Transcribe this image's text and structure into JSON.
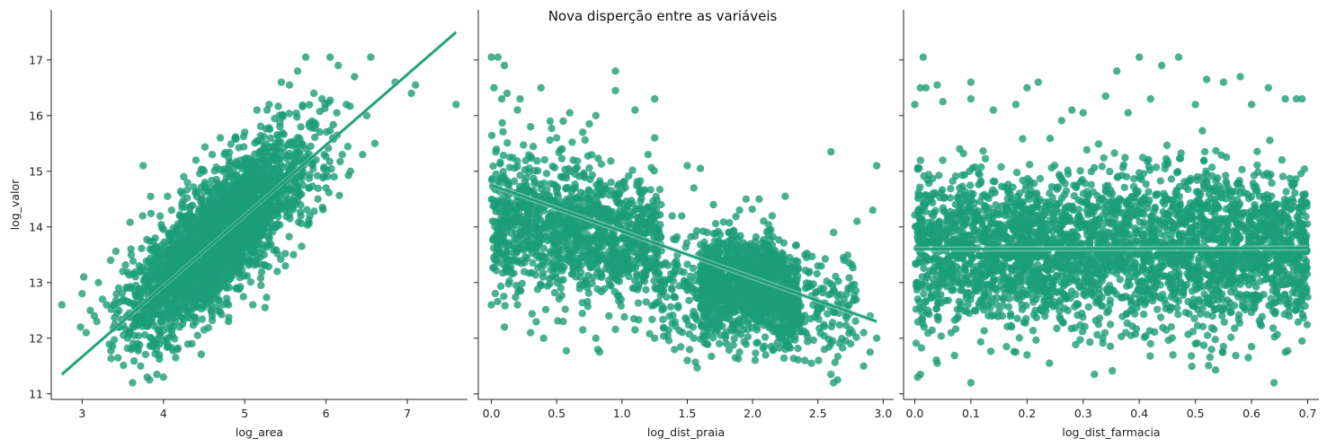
{
  "figure": {
    "suptitle": "Nova disperção entre as variáveis"
  },
  "colors": {
    "points": "#1b9e77",
    "line": "#1b9e77",
    "band": "#a8d8c8"
  },
  "chart_data": [
    {
      "type": "scatter",
      "xlabel": "log_area",
      "ylabel": "log_valor",
      "xlim": [
        2.62,
        7.74
      ],
      "ylim": [
        10.9,
        17.9
      ],
      "xticks": [
        3,
        4,
        5,
        6,
        7
      ],
      "yticks": [
        11,
        12,
        13,
        14,
        15,
        16,
        17
      ],
      "regression_line": {
        "x": [
          2.75,
          7.6
        ],
        "y": [
          11.35,
          17.5
        ]
      },
      "series": [
        {
          "points": [
            [
              2.75,
              12.6
            ],
            [
              2.98,
              12.2
            ],
            [
              3.0,
              12.8
            ],
            [
              3.02,
              13.1
            ],
            [
              3.05,
              12.1
            ],
            [
              3.1,
              12.5
            ],
            [
              3.15,
              12.4
            ],
            [
              3.18,
              12.3
            ],
            [
              3.2,
              13.0
            ],
            [
              3.25,
              12.7
            ],
            [
              3.3,
              12.6
            ],
            [
              3.35,
              13.4
            ],
            [
              3.4,
              12.6
            ],
            [
              3.45,
              12.9
            ],
            [
              3.45,
              12.2
            ],
            [
              3.5,
              13.2
            ],
            [
              3.55,
              12.9
            ],
            [
              3.55,
              12.4
            ],
            [
              3.6,
              12.9
            ],
            [
              3.6,
              13.6
            ],
            [
              3.62,
              11.2
            ],
            [
              3.65,
              12.3
            ],
            [
              3.7,
              13.3
            ],
            [
              3.72,
              11.5
            ],
            [
              3.75,
              15.1
            ],
            [
              3.8,
              11.3
            ],
            [
              3.83,
              11.25
            ],
            [
              3.85,
              12.0
            ],
            [
              3.9,
              13.8
            ],
            [
              3.92,
              11.35
            ],
            [
              3.95,
              11.7
            ],
            [
              4.0,
              11.3
            ],
            [
              4.05,
              11.9
            ],
            [
              4.05,
              14.55
            ],
            [
              4.1,
              14.3
            ],
            [
              4.15,
              11.65
            ],
            [
              4.2,
              12.2
            ],
            [
              4.2,
              14.2
            ],
            [
              4.25,
              14.9
            ],
            [
              4.3,
              12.8
            ],
            [
              4.35,
              11.9
            ],
            [
              4.4,
              15.2
            ],
            [
              4.42,
              12.05
            ],
            [
              4.5,
              12.15
            ],
            [
              4.5,
              15.0
            ],
            [
              4.6,
              12.4
            ],
            [
              4.6,
              15.3
            ],
            [
              4.7,
              15.6
            ],
            [
              4.75,
              14.7
            ],
            [
              4.8,
              12.3
            ],
            [
              4.8,
              12.6
            ],
            [
              4.9,
              12.9
            ],
            [
              4.95,
              15.2
            ],
            [
              5.0,
              15.7
            ],
            [
              5.05,
              13.9
            ],
            [
              5.1,
              12.6
            ],
            [
              5.15,
              16.1
            ],
            [
              5.2,
              12.95
            ],
            [
              5.25,
              12.55
            ],
            [
              5.3,
              16.2
            ],
            [
              5.4,
              13.2
            ],
            [
              5.45,
              16.6
            ],
            [
              5.5,
              13.3
            ],
            [
              5.55,
              16.55
            ],
            [
              5.6,
              13.5
            ],
            [
              5.65,
              16.8
            ],
            [
              5.7,
              13.65
            ],
            [
              5.75,
              17.05
            ],
            [
              5.8,
              14.2
            ],
            [
              5.85,
              16.4
            ],
            [
              5.9,
              14.5
            ],
            [
              5.95,
              16.3
            ],
            [
              6.0,
              14.7
            ],
            [
              6.05,
              17.05
            ],
            [
              6.1,
              14.9
            ],
            [
              6.15,
              16.9
            ],
            [
              6.2,
              15.3
            ],
            [
              6.25,
              16.2
            ],
            [
              6.3,
              15.0
            ],
            [
              6.35,
              16.7
            ],
            [
              6.45,
              15.3
            ],
            [
              6.5,
              16.0
            ],
            [
              6.55,
              17.05
            ],
            [
              6.6,
              15.5
            ],
            [
              6.85,
              16.6
            ],
            [
              7.05,
              16.4
            ],
            [
              7.1,
              16.55
            ],
            [
              7.6,
              16.2
            ]
          ]
        }
      ]
    },
    {
      "type": "scatter",
      "xlabel": "log_dist_praia",
      "ylabel": "",
      "xlim": [
        -0.1,
        3.08
      ],
      "ylim": [
        10.9,
        17.9
      ],
      "xticks": [
        "0.0",
        "0.5",
        "1.0",
        "1.5",
        "2.0",
        "2.5",
        "3.0"
      ],
      "yticks": [
        11,
        12,
        13,
        14,
        15,
        16,
        17
      ],
      "regression_line": {
        "x": [
          0.0,
          2.95
        ],
        "y": [
          14.75,
          12.3
        ]
      },
      "series": [
        {
          "points": [
            [
              0.0,
              17.05
            ],
            [
              0.02,
              16.5
            ],
            [
              0.05,
              17.05
            ],
            [
              0.08,
              16.3
            ],
            [
              0.1,
              16.9
            ],
            [
              0.12,
              16.4
            ],
            [
              0.2,
              16.1
            ],
            [
              0.22,
              16.3
            ],
            [
              0.3,
              15.8
            ],
            [
              0.38,
              16.5
            ],
            [
              0.45,
              15.9
            ],
            [
              0.5,
              15.6
            ],
            [
              0.55,
              15.9
            ],
            [
              0.6,
              16.05
            ],
            [
              0.7,
              15.7
            ],
            [
              0.75,
              15.85
            ],
            [
              0.8,
              16.0
            ],
            [
              0.95,
              16.8
            ],
            [
              0.95,
              16.45
            ],
            [
              1.1,
              16.1
            ],
            [
              1.25,
              16.3
            ],
            [
              1.25,
              15.6
            ],
            [
              1.2,
              15.3
            ],
            [
              1.5,
              15.1
            ],
            [
              1.6,
              15.05
            ],
            [
              1.55,
              14.7
            ],
            [
              1.7,
              14.4
            ],
            [
              1.9,
              14.3
            ],
            [
              1.95,
              14.5
            ],
            [
              2.05,
              14.5
            ],
            [
              2.15,
              14.2
            ],
            [
              2.25,
              14.55
            ],
            [
              2.6,
              15.35
            ],
            [
              2.62,
              13.9
            ],
            [
              2.7,
              13.4
            ],
            [
              2.8,
              14.1
            ],
            [
              2.92,
              14.3
            ],
            [
              2.95,
              15.1
            ],
            [
              0.0,
              12.6
            ],
            [
              0.1,
              12.2
            ],
            [
              0.2,
              12.6
            ],
            [
              0.3,
              12.1
            ],
            [
              0.4,
              12.0
            ],
            [
              0.55,
              12.3
            ],
            [
              0.7,
              12.15
            ],
            [
              0.8,
              12.0
            ],
            [
              0.9,
              12.4
            ],
            [
              1.1,
              12.15
            ],
            [
              1.25,
              12.0
            ],
            [
              1.35,
              12.05
            ],
            [
              1.5,
              11.6
            ],
            [
              1.55,
              12.0
            ],
            [
              1.65,
              11.9
            ],
            [
              1.8,
              11.9
            ],
            [
              1.9,
              11.75
            ],
            [
              2.1,
              11.7
            ],
            [
              2.25,
              11.8
            ],
            [
              2.4,
              11.6
            ],
            [
              2.45,
              11.55
            ],
            [
              2.55,
              11.8
            ],
            [
              2.6,
              11.35
            ],
            [
              2.65,
              11.25
            ],
            [
              2.62,
              11.2
            ],
            [
              2.75,
              11.9
            ],
            [
              2.85,
              11.5
            ],
            [
              2.9,
              11.75
            ],
            [
              2.95,
              12.0
            ],
            [
              2.85,
              12.1
            ],
            [
              2.9,
              12.4
            ],
            [
              2.7,
              12.7
            ],
            [
              2.6,
              12.8
            ],
            [
              2.5,
              13.3
            ],
            [
              2.4,
              13.5
            ],
            [
              2.3,
              12.9
            ]
          ]
        }
      ]
    },
    {
      "type": "scatter",
      "xlabel": "log_dist_farmacia",
      "ylabel": "",
      "xlim": [
        -0.02,
        0.72
      ],
      "ylim": [
        10.9,
        17.9
      ],
      "xticks": [
        "0.0",
        "0.1",
        "0.2",
        "0.3",
        "0.4",
        "0.5",
        "0.6",
        "0.7"
      ],
      "yticks": [
        11,
        12,
        13,
        14,
        15,
        16,
        17
      ],
      "regression_line": {
        "x": [
          0.0,
          0.7
        ],
        "y": [
          13.6,
          13.62
        ]
      },
      "series": [
        {
          "points": [
            [
              0.0,
              16.2
            ],
            [
              0.01,
              16.5
            ],
            [
              0.02,
              16.5
            ],
            [
              0.015,
              17.05
            ],
            [
              0.04,
              16.55
            ],
            [
              0.05,
              16.25
            ],
            [
              0.08,
              15.4
            ],
            [
              0.1,
              16.3
            ],
            [
              0.1,
              16.6
            ],
            [
              0.14,
              16.1
            ],
            [
              0.18,
              16.2
            ],
            [
              0.2,
              16.5
            ],
            [
              0.22,
              16.6
            ],
            [
              0.28,
              16.1
            ],
            [
              0.3,
              16.05
            ],
            [
              0.34,
              16.35
            ],
            [
              0.36,
              16.8
            ],
            [
              0.38,
              16.05
            ],
            [
              0.4,
              17.05
            ],
            [
              0.42,
              16.3
            ],
            [
              0.44,
              16.9
            ],
            [
              0.47,
              17.05
            ],
            [
              0.5,
              16.2
            ],
            [
              0.52,
              16.65
            ],
            [
              0.55,
              16.6
            ],
            [
              0.58,
              16.7
            ],
            [
              0.6,
              16.2
            ],
            [
              0.63,
              16.5
            ],
            [
              0.66,
              16.3
            ],
            [
              0.68,
              16.3
            ],
            [
              0.69,
              16.3
            ],
            [
              0.005,
              11.3
            ],
            [
              0.01,
              11.35
            ],
            [
              0.04,
              11.55
            ],
            [
              0.1,
              11.2
            ],
            [
              0.18,
              11.75
            ],
            [
              0.2,
              11.7
            ],
            [
              0.24,
              11.55
            ],
            [
              0.32,
              11.35
            ],
            [
              0.42,
              11.9
            ],
            [
              0.46,
              11.7
            ],
            [
              0.5,
              11.9
            ],
            [
              0.55,
              11.85
            ],
            [
              0.6,
              11.85
            ],
            [
              0.64,
              11.2
            ],
            [
              0.66,
              11.75
            ],
            [
              0.69,
              11.95
            ]
          ]
        }
      ]
    }
  ]
}
